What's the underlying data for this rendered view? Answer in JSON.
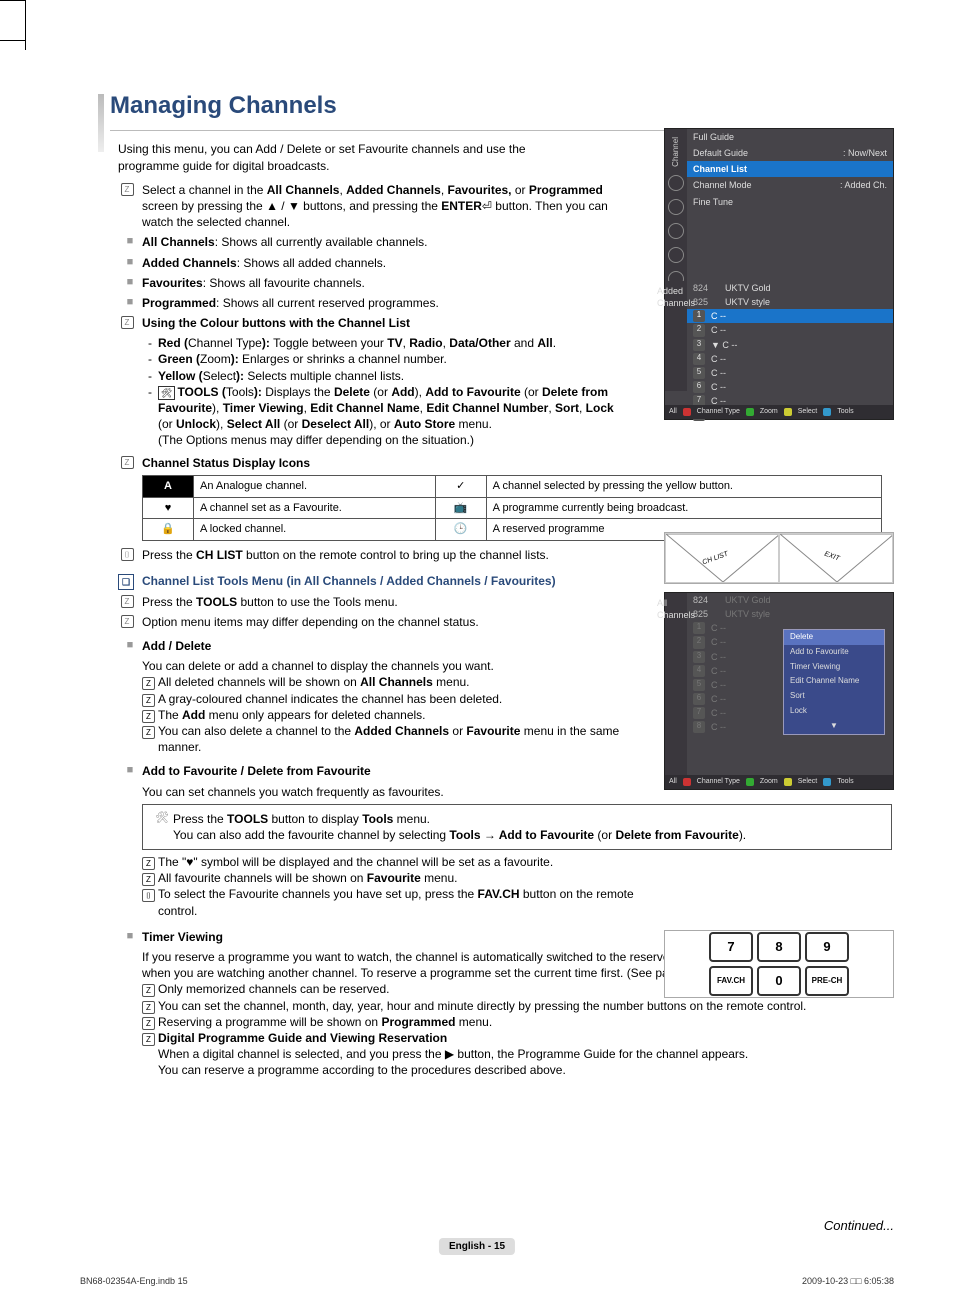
{
  "page": {
    "title": "Managing Channels",
    "intro": "Using this menu, you can Add / Delete or set Favourite channels and use the programme guide for digital broadcasts.",
    "footer_left": "BN68-02354A-Eng.indb   15",
    "footer_right": "2009-10-23   □□ 6:05:38",
    "pagenum": "English - 15",
    "continued": "Continued..."
  },
  "select_channel": {
    "pre": "Select a channel in the ",
    "b1": "All Channels",
    "s1": ", ",
    "b2": "Added Channels",
    "s2": ", ",
    "b3": "Favourites,",
    "s3": " or ",
    "b4": "Programmed",
    "line2a": " screen by pressing the ▲ / ▼ buttons, and pressing the ",
    "b5": "ENTER",
    "line2b": "⏎ button. Then you can watch the selected channel."
  },
  "defs": {
    "all_b": "All Channels",
    "all_t": ": Shows all currently available channels.",
    "added_b": "Added Channels",
    "added_t": ": Shows all added channels.",
    "fav_b": "Favourites",
    "fav_t": ": Shows all favourite channels.",
    "prog_b": "Programmed",
    "prog_t": ": Shows all current reserved programmes."
  },
  "colour": {
    "head": "Using the Colour buttons with the Channel List",
    "red_b": "Red (",
    "red_m": "Channel Type",
    "red_e": "): ",
    "red_t": "Toggle between your ",
    "red_tv": "TV",
    "red_c1": ", ",
    "red_radio": "Radio",
    "red_c2": ", ",
    "red_do": "Data/Other",
    "red_and": " and ",
    "red_all": "All",
    "red_dot": ".",
    "green_b": "Green (",
    "green_m": "Zoom",
    "green_e": "): ",
    "green_t": "Enlarges or shrinks a channel number.",
    "yellow_b": "Yellow  (",
    "yellow_m": "Select",
    "yellow_e": "): ",
    "yellow_t": "Selects multiple channel lists.",
    "tools_b": "TOOLS (",
    "tools_m": "Tools",
    "tools_e": "): ",
    "tools_t1": "Displays the ",
    "tb_del": "Delete",
    "ts1": " (or ",
    "tb_add": "Add",
    "ts2": "), ",
    "tb_af": "Add to Favourite",
    "ts3": " (or ",
    "tb_df": "Delete from Favourite",
    "ts4": "), ",
    "tb_tv": "Timer Viewing",
    "ts5": ", ",
    "tb_ecn": "Edit Channel Name",
    "ts6": ", ",
    "tb_ecno": "Edit Channel Number",
    "ts7": ", ",
    "tb_sort": "Sort",
    "ts8": ", ",
    "tb_lock": "Lock",
    "ts9": " (or ",
    "tb_unlock": "Unlock",
    "ts10": "), ",
    "tb_sa": "Select All",
    "ts11": " (or ",
    "tb_da": "Deselect All",
    "ts12": "), or ",
    "tb_as": "Auto Store",
    "ts13": " menu.",
    "tools_t2": "(The Options menus may differ depending on the situation.)"
  },
  "status_head": "Channel Status Display Icons",
  "table": {
    "r1a": "An Analogue channel.",
    "r1b": "A channel selected by pressing the yellow button.",
    "r2a": "A channel set as a Favourite.",
    "r2b": "A programme currently being broadcast.",
    "r3a": "A locked channel.",
    "r3b": "A reserved programme"
  },
  "chlist_line": {
    "pre": "Press the ",
    "b": "CH LIST",
    "post": " button on the remote control to bring up the channel lists."
  },
  "subsec_title": "Channel List Tools Menu (in All Channels / Added Channels / Favourites)",
  "tools_line": {
    "pre": "Press the ",
    "b": "TOOLS",
    "post": " button to use the Tools menu."
  },
  "tools_note": "Option menu items may differ depending on the channel status.",
  "add_del": {
    "head": "Add / Delete",
    "l1": "You can delete or add a channel to display the channels you want.",
    "l2a": "All deleted channels will be shown on ",
    "l2b": "All Channels",
    "l2c": " menu.",
    "l3": "A gray-coloured channel indicates the channel has been deleted.",
    "l4a": "The ",
    "l4b": "Add",
    "l4c": " menu only appears for deleted channels.",
    "l5a": "You can also delete a channel to the ",
    "l5b": "Added Channels",
    "l5c": " or ",
    "l5d": "Favourite",
    "l5e": " menu in the same manner."
  },
  "fav": {
    "head": "Add to Favourite / Delete from Favourite",
    "l1": "You can set channels you watch frequently as favourites.",
    "box1a": "Press the ",
    "box1b": "TOOLS",
    "box1c": " button to display ",
    "box1d": "Tools",
    "box1e": " menu.",
    "box2a": "You can also add the favourite channel by selecting ",
    "box2b": "Tools → Add to Favourite",
    "box2c": " (or ",
    "box2d": "Delete from Favourite",
    "box2e": ").",
    "l2": "The \"♥\" symbol will be displayed and the channel will be set as a favourite.",
    "l3a": "All favourite channels will be shown on ",
    "l3b": "Favourite",
    "l3c": " menu.",
    "l4a": "To select the Favourite channels you have set up, press the ",
    "l4b": "FAV.CH",
    "l4c": " button on the remote control."
  },
  "timer": {
    "head": "Timer Viewing",
    "l1": "If you reserve a programme you want to watch, the channel is automatically switched to the reserved channel in the Channel List; even when you are watching another channel. To reserve a programme set the current time first. (See page 27)",
    "l2": "Only memorized channels can be reserved.",
    "l3": "You can set the channel, month, day, year, hour and minute directly by pressing the number buttons on the remote control.",
    "l4a": "Reserving a programme will be shown on ",
    "l4b": "Programmed",
    "l4c": " menu.",
    "l5": "Digital Programme Guide and Viewing Reservation",
    "l6": "When a digital channel is selected, and you press the ▶ button, the Programme Guide for the channel appears.",
    "l7": "You can reserve a programme  according to the procedures described above."
  },
  "osd1": {
    "side1": "Channel",
    "side2": "Added Channels",
    "full": "Full Guide",
    "def": "Default Guide",
    "defv": ": Now/Next",
    "cl": "Channel List",
    "cm": "Channel Mode",
    "cmv": ": Added Ch.",
    "ft": "Fine Tune",
    "ch": [
      {
        "n": "824",
        "t": "UKTV Gold"
      },
      {
        "n": "825",
        "t": "UKTV style"
      }
    ],
    "rows": [
      {
        "d": "1",
        "c": "C --",
        "hl": true
      },
      {
        "d": "2",
        "c": "C --"
      },
      {
        "d": "3",
        "c": "C --",
        "mark": "▼"
      },
      {
        "d": "4",
        "c": "C --"
      },
      {
        "d": "5",
        "c": "C --"
      },
      {
        "d": "6",
        "c": "C --"
      },
      {
        "d": "7",
        "c": "C --"
      },
      {
        "d": "8",
        "c": "C --"
      }
    ],
    "bot": [
      "All",
      "Channel Type",
      "Zoom",
      "Select",
      "Tools"
    ],
    "bot_colors": [
      "#c33",
      "#3a3",
      "#cc3",
      "#39c"
    ]
  },
  "osd2": {
    "side": "All Channels",
    "ch": [
      {
        "n": "824",
        "t": "UKTV Gold"
      },
      {
        "n": "825",
        "t": "UKTV style"
      }
    ],
    "rows": [
      {
        "d": "1",
        "c": "C --"
      },
      {
        "d": "2",
        "c": "C --"
      },
      {
        "d": "3",
        "c": "C --"
      },
      {
        "d": "4",
        "c": "C --"
      },
      {
        "d": "5",
        "c": "C --"
      },
      {
        "d": "6",
        "c": "C --"
      },
      {
        "d": "7",
        "c": "C --"
      },
      {
        "d": "8",
        "c": "C --"
      }
    ],
    "popup": [
      "Delete",
      "Add to Favourite",
      "Timer Viewing",
      "Edit Channel Name",
      "Sort",
      "Lock",
      "▼"
    ],
    "bot": [
      "All",
      "Channel Type",
      "Zoom",
      "Select",
      "Tools"
    ]
  },
  "remote1": {
    "l": "CH LIST",
    "r": "EXIT"
  },
  "remote2": {
    "b": [
      "7",
      "8",
      "9",
      "FAV.CH",
      "0",
      "PRE-CH"
    ]
  },
  "colors": {
    "heading": "#2a4a7a",
    "osd_bg": "#464449",
    "osd_hl": "#1a74c9",
    "popup_bg": "#3a4a8a"
  },
  "glyphs": {
    "Z": "Ⓩ",
    "O": "Ⓞ",
    "square": "■",
    "check": "✓",
    "heart": "♥",
    "lock": "🔒",
    "tv": "📺",
    "clock": "🕒",
    "A": "A",
    "toolbox": "🛠",
    "sel": "⌷"
  }
}
